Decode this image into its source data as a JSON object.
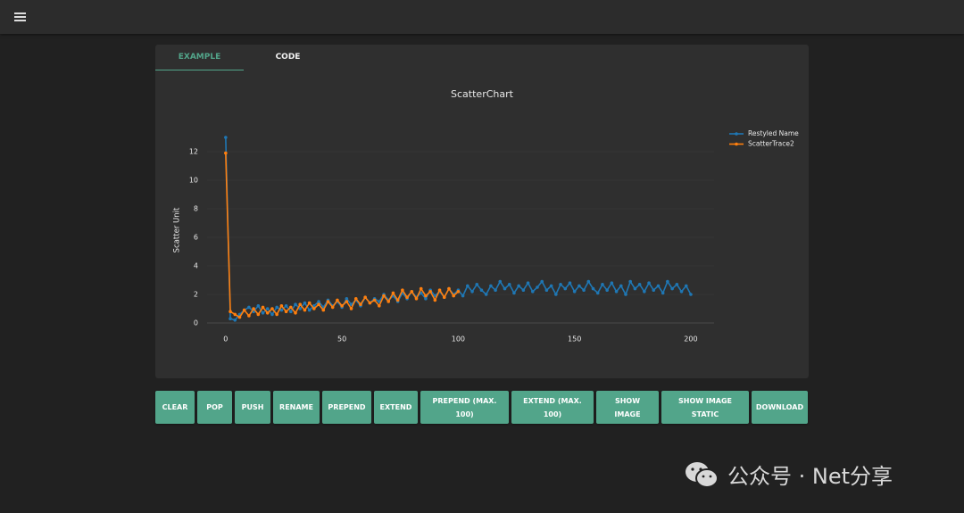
{
  "tabs": [
    "EXAMPLE",
    "CODE"
  ],
  "buttons": [
    "CLEAR",
    "POP",
    "PUSH",
    "RENAME",
    "PREPEND",
    "EXTEND",
    "PREPEND (MAX. 100)",
    "EXTEND (MAX. 100)",
    "SHOW IMAGE",
    "SHOW IMAGE STATIC",
    "DOWNLOAD"
  ],
  "watermark": "公众号 · Net分享",
  "chart_data": {
    "type": "scatter",
    "title": "ScatterChart",
    "y_label": "Scatter Unit",
    "xlim": [
      -8,
      210
    ],
    "xticks": [
      0,
      50,
      100,
      150,
      200
    ],
    "ylim": [
      -0.5,
      14
    ],
    "yticks": [
      0,
      2,
      4,
      6,
      8,
      10,
      12
    ],
    "grid": true,
    "legend": "top-right",
    "series": [
      {
        "name": "Restyled Name",
        "color": "#1f77b4",
        "x": [
          0,
          2,
          4,
          6,
          8,
          10,
          12,
          14,
          16,
          18,
          20,
          22,
          24,
          26,
          28,
          30,
          32,
          34,
          36,
          38,
          40,
          42,
          44,
          46,
          48,
          50,
          52,
          54,
          56,
          58,
          60,
          62,
          64,
          66,
          68,
          70,
          72,
          74,
          76,
          78,
          80,
          82,
          84,
          86,
          88,
          90,
          92,
          94,
          96,
          98,
          100,
          102,
          104,
          106,
          108,
          110,
          112,
          114,
          116,
          118,
          120,
          122,
          124,
          126,
          128,
          130,
          132,
          134,
          136,
          138,
          140,
          142,
          144,
          146,
          148,
          150,
          152,
          154,
          156,
          158,
          160,
          162,
          164,
          166,
          168,
          170,
          172,
          174,
          176,
          178,
          180,
          182,
          184,
          186,
          188,
          190,
          192,
          194,
          196,
          198,
          200
        ],
        "values": [
          13,
          0.3,
          0.2,
          0.6,
          0.9,
          1.1,
          0.8,
          1.2,
          0.7,
          1.0,
          0.6,
          1.1,
          0.9,
          1.2,
          0.8,
          1.3,
          1.0,
          1.4,
          0.9,
          1.2,
          1.5,
          1.1,
          1.6,
          1.2,
          1.5,
          1.1,
          1.7,
          1.3,
          1.6,
          1.2,
          1.8,
          1.4,
          1.7,
          1.5,
          2.0,
          1.6,
          1.9,
          1.5,
          2.1,
          1.7,
          2.2,
          1.8,
          2.1,
          1.7,
          2.3,
          1.9,
          2.2,
          1.8,
          2.4,
          2.0,
          2.3,
          1.9,
          2.6,
          2.2,
          2.7,
          2.3,
          2.0,
          2.6,
          2.3,
          2.9,
          2.4,
          2.7,
          2.1,
          2.6,
          2.3,
          2.8,
          2.2,
          2.5,
          2.9,
          2.3,
          2.6,
          2.0,
          2.7,
          2.4,
          2.8,
          2.2,
          2.6,
          2.3,
          2.9,
          2.4,
          2.1,
          2.7,
          2.3,
          2.8,
          2.2,
          2.6,
          2.0,
          2.9,
          2.4,
          2.7,
          2.2,
          2.8,
          2.3,
          2.6,
          2.1,
          2.9,
          2.4,
          2.7,
          2.2,
          2.6,
          2.0
        ]
      },
      {
        "name": "ScatterTrace2",
        "color": "#ff7f0e",
        "x": [
          0,
          2,
          4,
          6,
          8,
          10,
          12,
          14,
          16,
          18,
          20,
          22,
          24,
          26,
          28,
          30,
          32,
          34,
          36,
          38,
          40,
          42,
          44,
          46,
          48,
          50,
          52,
          54,
          56,
          58,
          60,
          62,
          64,
          66,
          68,
          70,
          72,
          74,
          76,
          78,
          80,
          82,
          84,
          86,
          88,
          90,
          92,
          94,
          96,
          98,
          100
        ],
        "values": [
          11.9,
          0.8,
          0.6,
          0.4,
          0.9,
          0.5,
          1.0,
          0.6,
          1.1,
          0.7,
          1.0,
          0.6,
          1.2,
          0.8,
          1.1,
          0.7,
          1.3,
          0.9,
          1.4,
          1.0,
          1.3,
          0.9,
          1.5,
          1.1,
          1.6,
          1.2,
          1.5,
          1.0,
          1.7,
          1.3,
          1.8,
          1.4,
          1.6,
          1.2,
          1.9,
          1.5,
          2.1,
          1.6,
          2.3,
          1.8,
          2.2,
          1.7,
          2.4,
          1.9,
          2.2,
          1.6,
          2.3,
          1.8,
          2.4,
          1.9,
          2.2
        ]
      }
    ]
  }
}
